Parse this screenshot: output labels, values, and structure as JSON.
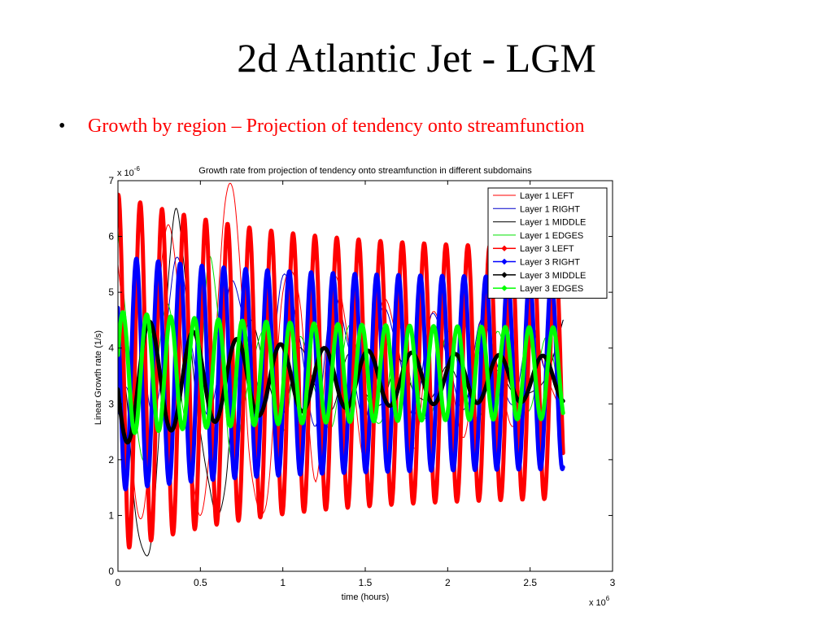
{
  "slide": {
    "title": "2d Atlantic Jet - LGM",
    "bullet": "Growth by region – Projection of tendency onto streamfunction"
  },
  "chart_data": {
    "type": "line",
    "title": "Growth rate from projection of tendency onto streamfunction in different subdomains",
    "xlabel": "time (hours)",
    "ylabel": "Linear Growth rate (1/s)",
    "x_multiplier": "x 10",
    "x_multiplier_exp": "6",
    "y_multiplier": "x 10",
    "y_multiplier_exp": "-6",
    "xlim": [
      0,
      3
    ],
    "ylim": [
      0,
      7
    ],
    "xticks": [
      "0",
      "0.5",
      "1",
      "1.5",
      "2",
      "2.5",
      "3"
    ],
    "yticks": [
      "0",
      "1",
      "2",
      "3",
      "4",
      "5",
      "6",
      "7"
    ],
    "grid": false,
    "legend_position": "top-right",
    "series": [
      {
        "name": "Layer 1 LEFT",
        "color": "#ff0000",
        "style": "thin",
        "x": [
          0,
          0.05,
          0.1,
          0.15,
          0.2,
          0.25,
          0.3,
          0.35,
          0.4,
          0.45,
          0.5,
          0.55,
          0.6,
          0.65,
          0.7,
          0.75,
          0.8,
          0.9,
          1.0,
          1.1,
          1.2,
          1.3,
          1.4,
          1.5,
          1.6,
          1.7,
          1.8,
          1.9,
          2.0,
          2.1,
          2.2,
          2.3,
          2.4,
          2.5,
          2.6,
          2.7
        ],
        "y": [
          5.5,
          4.0,
          1.5,
          1.0,
          2.5,
          5.0,
          6.2,
          5.5,
          3.5,
          1.8,
          1.0,
          2.0,
          4.5,
          6.6,
          6.8,
          5.0,
          2.0,
          1.2,
          5.0,
          4.9,
          1.6,
          5.2,
          4.1,
          2.0,
          4.8,
          4.0,
          2.2,
          4.6,
          3.8,
          2.4,
          4.5,
          3.7,
          2.6,
          4.4,
          3.5,
          2.8
        ]
      },
      {
        "name": "Layer 1 RIGHT",
        "color": "#0000cc",
        "style": "thin",
        "x": [
          0,
          0.05,
          0.1,
          0.15,
          0.2,
          0.25,
          0.3,
          0.35,
          0.4,
          0.45,
          0.5,
          0.55,
          0.6,
          0.65,
          0.7,
          0.8,
          0.9,
          1.0,
          1.1,
          1.2,
          1.3,
          1.4,
          1.5,
          1.6,
          1.7,
          1.8,
          1.9,
          2.0,
          2.1,
          2.2,
          2.3,
          2.4,
          2.5,
          2.6,
          2.7
        ],
        "y": [
          2.8,
          3.3,
          2.8,
          3.6,
          2.9,
          3.2,
          4.5,
          5.6,
          5.2,
          4.0,
          3.2,
          2.8,
          3.4,
          4.6,
          5.2,
          4.0,
          3.0,
          5.3,
          4.2,
          2.6,
          4.9,
          4.0,
          2.7,
          4.7,
          3.9,
          2.8,
          4.6,
          3.8,
          2.9,
          4.5,
          3.7,
          3.0,
          4.4,
          3.6,
          4.5
        ]
      },
      {
        "name": "Layer 1 MIDDLE",
        "color": "#000000",
        "style": "thin",
        "x": [
          0,
          0.05,
          0.1,
          0.15,
          0.2,
          0.25,
          0.3,
          0.35,
          0.4,
          0.45,
          0.5,
          0.55,
          0.6,
          0.65,
          0.7,
          0.8,
          0.9,
          1.0,
          1.1,
          1.2,
          1.3,
          1.4,
          1.5,
          1.6,
          1.7,
          1.8,
          1.9,
          2.0,
          2.1,
          2.2,
          2.3,
          2.4,
          2.5,
          2.6,
          2.7
        ],
        "y": [
          3.6,
          3.2,
          1.2,
          0.4,
          0.5,
          2.5,
          5.0,
          6.5,
          5.5,
          3.8,
          2.5,
          1.6,
          1.0,
          1.5,
          3.0,
          4.5,
          3.5,
          2.8,
          4.0,
          3.3,
          2.9,
          3.9,
          3.2,
          3.0,
          3.8,
          3.2,
          3.1,
          3.7,
          3.2,
          3.1,
          3.6,
          3.2,
          3.2,
          3.5,
          4.5
        ]
      },
      {
        "name": "Layer 1 EDGES",
        "color": "#00e000",
        "style": "thin",
        "x": [
          0,
          0.05,
          0.1,
          0.15,
          0.2,
          0.25,
          0.3,
          0.35,
          0.4,
          0.45,
          0.5,
          0.55,
          0.6,
          0.65,
          0.7,
          0.8,
          0.9,
          1.0,
          1.1,
          1.2,
          1.3,
          1.4,
          1.5,
          1.6,
          1.7,
          1.8,
          1.9,
          2.0,
          2.1,
          2.2,
          2.3,
          2.4,
          2.5,
          2.6,
          2.7
        ],
        "y": [
          6.1,
          4.5,
          3.0,
          2.0,
          2.5,
          4.0,
          4.8,
          4.0,
          2.8,
          2.3,
          3.5,
          5.6,
          4.8,
          3.0,
          2.0,
          3.5,
          4.3,
          2.5,
          4.2,
          3.2,
          2.6,
          4.4,
          3.2,
          2.7,
          4.4,
          3.1,
          2.8,
          4.3,
          3.2,
          2.8,
          4.3,
          3.2,
          2.9,
          4.2,
          2.7
        ]
      },
      {
        "name": "Layer 3 LEFT",
        "color": "#ff0000",
        "style": "marker",
        "amp_start": 3.2,
        "amp_end": 2.2,
        "mean": 3.55,
        "period": 0.1325,
        "phase": 1.46,
        "amp_tau": 0.9
      },
      {
        "name": "Layer 3 RIGHT",
        "color": "#0000ff",
        "style": "marker",
        "amp_start": 2.1,
        "amp_end": 1.7,
        "mean": 3.55,
        "period": 0.1325,
        "phase": 2.55,
        "amp_tau": 0.9
      },
      {
        "name": "Layer 3 MIDDLE",
        "color": "#000000",
        "style": "marker",
        "amp_start": 1.2,
        "amp_end": 0.38,
        "mean": 3.45,
        "period": 0.265,
        "phase": 3.3,
        "amp_tau": 0.8
      },
      {
        "name": "Layer 3 EDGES",
        "color": "#00ff00",
        "style": "marker",
        "amp_start": 1.1,
        "amp_end": 0.8,
        "mean": 3.55,
        "period": 0.145,
        "phase": 0.3,
        "amp_tau": 1.0
      }
    ]
  }
}
